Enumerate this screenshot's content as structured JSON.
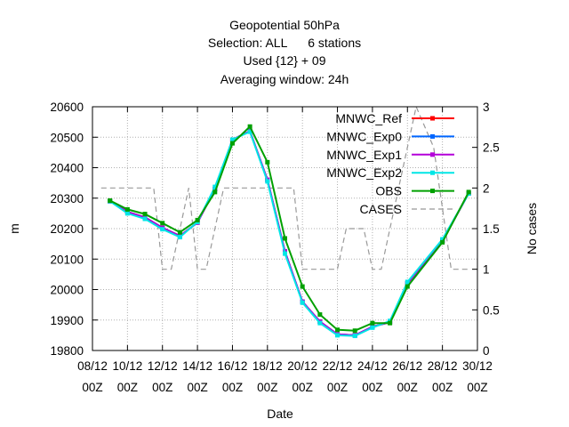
{
  "chart_data": {
    "type": "line",
    "title_lines": [
      "Geopotential 50hPa",
      "Selection: ALL      6 stations",
      "Used {12} + 09",
      "Averaging window: 24h"
    ],
    "xlabel": "Date",
    "ylabel": "m",
    "y2label": "No cases",
    "ylim": [
      19800,
      20600
    ],
    "y2lim": [
      0,
      3
    ],
    "yticks": [
      19800,
      19900,
      20000,
      20100,
      20200,
      20300,
      20400,
      20500,
      20600
    ],
    "y2ticks": [
      0,
      0.5,
      1,
      1.5,
      2,
      2.5,
      3
    ],
    "y2tick_labels": [
      "0",
      "0.5",
      "1",
      "1.5",
      "2",
      "2.5",
      "3"
    ],
    "xlim": [
      "2012-12-08 00Z",
      "2012-12-30 00Z"
    ],
    "xtick_labels": [
      [
        "08/12",
        "00Z"
      ],
      [
        "10/12",
        "00Z"
      ],
      [
        "12/12",
        "00Z"
      ],
      [
        "14/12",
        "00Z"
      ],
      [
        "16/12",
        "00Z"
      ],
      [
        "18/12",
        "00Z"
      ],
      [
        "20/12",
        "00Z"
      ],
      [
        "22/12",
        "00Z"
      ],
      [
        "24/12",
        "00Z"
      ],
      [
        "26/12",
        "00Z"
      ],
      [
        "28/12",
        "00Z"
      ],
      [
        "30/12",
        "00Z"
      ]
    ],
    "x": [
      "2012-12-09 00Z",
      "2012-12-10 00Z",
      "2012-12-11 00Z",
      "2012-12-12 00Z",
      "2012-12-13 00Z",
      "2012-12-14 00Z",
      "2012-12-15 00Z",
      "2012-12-16 00Z",
      "2012-12-17 00Z",
      "2012-12-18 00Z",
      "2012-12-19 00Z",
      "2012-12-20 00Z",
      "2012-12-21 00Z",
      "2012-12-22 00Z",
      "2012-12-23 00Z",
      "2012-12-24 00Z",
      "2012-12-25 00Z",
      "2012-12-26 00Z",
      "2012-12-28 00Z",
      "2012-12-29 12Z"
    ],
    "grid": true,
    "legend_position": "top-right",
    "series": [
      {
        "name": "MNWC_Ref",
        "color": "#ff0000",
        "axis": "y",
        "values": [
          20290,
          20255,
          20237,
          20203,
          20176,
          20220,
          20330,
          20492,
          20520,
          20360,
          20125,
          19960,
          19895,
          19853,
          19850,
          19878,
          19893,
          20020,
          20160,
          20316
        ]
      },
      {
        "name": "MNWC_Exp0",
        "color": "#0066ff",
        "axis": "y",
        "values": [
          20290,
          20255,
          20237,
          20203,
          20176,
          20220,
          20330,
          20492,
          20520,
          20360,
          20125,
          19960,
          19895,
          19853,
          19850,
          19878,
          19893,
          20020,
          20160,
          20316
        ]
      },
      {
        "name": "MNWC_Exp1",
        "color": "#b400d9",
        "axis": "y",
        "values": [
          20290,
          20255,
          20237,
          20203,
          20176,
          20220,
          20330,
          20492,
          20520,
          20360,
          20125,
          19960,
          19895,
          19853,
          19850,
          19878,
          19893,
          20020,
          20160,
          20316
        ]
      },
      {
        "name": "MNWC_Exp2",
        "color": "#00e6e6",
        "axis": "y",
        "values": [
          20290,
          20250,
          20232,
          20198,
          20172,
          20222,
          20337,
          20492,
          20518,
          20355,
          20118,
          19957,
          19890,
          19850,
          19848,
          19875,
          19897,
          20025,
          20165,
          20315
        ]
      },
      {
        "name": "OBS",
        "color": "#00a000",
        "axis": "y",
        "values": [
          20292,
          20263,
          20248,
          20218,
          20188,
          20228,
          20320,
          20480,
          20535,
          20418,
          20168,
          20010,
          19918,
          19868,
          19865,
          19890,
          19890,
          20010,
          20155,
          20320
        ]
      },
      {
        "name": "CASES",
        "color": "#999999",
        "axis": "y2",
        "dashed": true,
        "x": [
          "2012-12-08 12Z",
          "2012-12-09 12Z",
          "2012-12-10 12Z",
          "2012-12-11 12Z",
          "2012-12-12 00Z",
          "2012-12-12 12Z",
          "2012-12-13 12Z",
          "2012-12-14 00Z",
          "2012-12-14 12Z",
          "2012-12-15 12Z",
          "2012-12-16 12Z",
          "2012-12-17 12Z",
          "2012-12-18 12Z",
          "2012-12-19 12Z",
          "2012-12-20 00Z",
          "2012-12-20 12Z",
          "2012-12-21 12Z",
          "2012-12-22 00Z",
          "2012-12-22 12Z",
          "2012-12-23 12Z",
          "2012-12-24 00Z",
          "2012-12-24 12Z",
          "2012-12-25 12Z",
          "2012-12-26 12Z",
          "2012-12-27 12Z",
          "2012-12-28 12Z",
          "2012-12-29 00Z",
          "2012-12-29 12Z"
        ],
        "values": [
          2,
          2,
          2,
          2,
          1,
          1,
          2,
          1,
          1,
          2,
          2,
          2,
          2,
          2,
          1,
          1,
          1,
          1,
          1.5,
          1.5,
          1,
          1,
          2,
          3,
          2.5,
          1,
          1,
          1
        ]
      }
    ]
  }
}
